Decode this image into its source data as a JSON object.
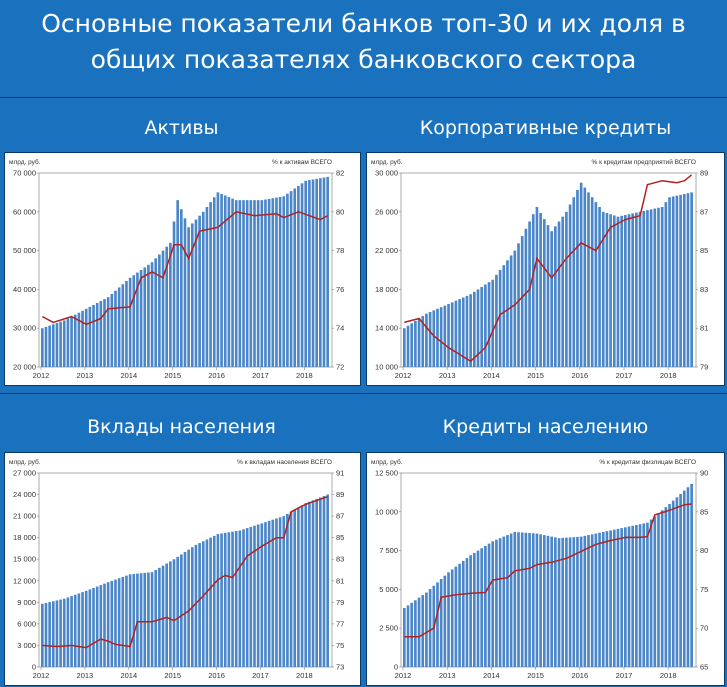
{
  "header": {
    "line1": "Основные показатели банков топ-30 и их доля в",
    "line2": "общих показателях банковского сектора"
  },
  "panel_titles": [
    "Активы",
    "Корпоративные кредиты",
    "Вклады населения",
    "Кредиты населению"
  ],
  "colors": {
    "bars": "#4a86c8",
    "line": "#b22222",
    "background": "#1a72bf"
  },
  "chart_data": [
    {
      "type": "bar",
      "title": "Активы",
      "left_unit": "млрд. руб.",
      "right_unit": "% к активам ВСЕГО",
      "x_labels": [
        "2012",
        "2013",
        "2014",
        "2015",
        "2016",
        "2017",
        "2018"
      ],
      "ylim": [
        20000,
        70000
      ],
      "yticks": [
        "20 000",
        "30 000",
        "40 000",
        "50 000",
        "60 000",
        "70 000"
      ],
      "y2lim": [
        72,
        82
      ],
      "y2ticks": [
        "72",
        "74",
        "76",
        "78",
        "80",
        "82"
      ],
      "series": [
        {
          "kind": "bar",
          "anchors": [
            [
              0,
              30000
            ],
            [
              6,
              32000
            ],
            [
              12,
              35000
            ],
            [
              18,
              38000
            ],
            [
              24,
              43000
            ],
            [
              30,
              47000
            ],
            [
              35,
              52000
            ],
            [
              37,
              63000
            ],
            [
              40,
              56000
            ],
            [
              44,
              60000
            ],
            [
              48,
              65000
            ],
            [
              53,
              63000
            ],
            [
              60,
              63000
            ],
            [
              66,
              64000
            ],
            [
              72,
              68000
            ],
            [
              78,
              69000
            ]
          ]
        },
        {
          "kind": "line",
          "anchors": [
            [
              0,
              74.6
            ],
            [
              3,
              74.3
            ],
            [
              8,
              74.6
            ],
            [
              12,
              74.2
            ],
            [
              16,
              74.5
            ],
            [
              18,
              75.0
            ],
            [
              24,
              75.1
            ],
            [
              27,
              76.6
            ],
            [
              30,
              76.9
            ],
            [
              33,
              76.6
            ],
            [
              36,
              78.3
            ],
            [
              38,
              78.3
            ],
            [
              40,
              77.6
            ],
            [
              43,
              79.0
            ],
            [
              48,
              79.2
            ],
            [
              53,
              80.0
            ],
            [
              58,
              79.8
            ],
            [
              64,
              79.9
            ],
            [
              66,
              79.7
            ],
            [
              70,
              80.0
            ],
            [
              76,
              79.6
            ],
            [
              78,
              79.8
            ]
          ]
        }
      ]
    },
    {
      "type": "bar",
      "title": "Корпоративные кредиты",
      "left_unit": "млрд. руб.",
      "right_unit": "% к кредитам предприятий ВСЕГО",
      "x_labels": [
        "2012",
        "2013",
        "2014",
        "2015",
        "2016",
        "2017",
        "2018"
      ],
      "ylim": [
        10000,
        30000
      ],
      "yticks": [
        "10 000",
        "14 000",
        "18 000",
        "22 000",
        "26 000",
        "30 000"
      ],
      "y2lim": [
        79,
        89
      ],
      "y2ticks": [
        "79",
        "81",
        "83",
        "85",
        "87",
        "89"
      ],
      "series": [
        {
          "kind": "bar",
          "anchors": [
            [
              0,
              14000
            ],
            [
              6,
              15500
            ],
            [
              12,
              16500
            ],
            [
              18,
              17500
            ],
            [
              24,
              19000
            ],
            [
              30,
              22000
            ],
            [
              36,
              26500
            ],
            [
              40,
              24000
            ],
            [
              44,
              26000
            ],
            [
              48,
              29000
            ],
            [
              54,
              26000
            ],
            [
              58,
              25500
            ],
            [
              64,
              26000
            ],
            [
              70,
              26500
            ],
            [
              72,
              27500
            ],
            [
              78,
              28000
            ]
          ]
        },
        {
          "kind": "line",
          "anchors": [
            [
              0,
              81.3
            ],
            [
              4,
              81.5
            ],
            [
              8,
              80.6
            ],
            [
              12,
              80.0
            ],
            [
              18,
              79.3
            ],
            [
              22,
              80.0
            ],
            [
              26,
              81.7
            ],
            [
              30,
              82.2
            ],
            [
              34,
              83.0
            ],
            [
              36,
              84.6
            ],
            [
              40,
              83.6
            ],
            [
              44,
              84.6
            ],
            [
              48,
              85.4
            ],
            [
              52,
              85.0
            ],
            [
              56,
              86.2
            ],
            [
              60,
              86.6
            ],
            [
              64,
              86.8
            ],
            [
              66,
              88.4
            ],
            [
              70,
              88.6
            ],
            [
              74,
              88.5
            ],
            [
              76,
              88.6
            ],
            [
              78,
              88.9
            ]
          ]
        }
      ]
    },
    {
      "type": "bar",
      "title": "Вклады населения",
      "left_unit": "млрд. руб.",
      "right_unit": "% к вкладам населения ВСЕГО",
      "x_labels": [
        "2012",
        "2013",
        "2014",
        "2015",
        "2016",
        "2017",
        "2018"
      ],
      "ylim": [
        0,
        27000
      ],
      "yticks": [
        "0",
        "3 000",
        "6 000",
        "9 000",
        "12 000",
        "15 000",
        "18 000",
        "21 000",
        "24 000",
        "27 000"
      ],
      "y2lim": [
        73,
        91
      ],
      "y2ticks": [
        "73",
        "75",
        "77",
        "79",
        "81",
        "83",
        "85",
        "87",
        "89",
        "91"
      ],
      "series": [
        {
          "kind": "bar",
          "anchors": [
            [
              0,
              8800
            ],
            [
              6,
              9500
            ],
            [
              12,
              10600
            ],
            [
              18,
              11800
            ],
            [
              24,
              12900
            ],
            [
              30,
              13200
            ],
            [
              36,
              15000
            ],
            [
              42,
              17000
            ],
            [
              48,
              18500
            ],
            [
              54,
              19000
            ],
            [
              60,
              20000
            ],
            [
              66,
              21000
            ],
            [
              72,
              22800
            ],
            [
              78,
              24000
            ]
          ]
        },
        {
          "kind": "line",
          "anchors": [
            [
              0,
              75.0
            ],
            [
              4,
              74.9
            ],
            [
              8,
              75.0
            ],
            [
              12,
              74.8
            ],
            [
              16,
              75.6
            ],
            [
              18,
              75.4
            ],
            [
              20,
              75.1
            ],
            [
              22,
              75.0
            ],
            [
              24,
              74.9
            ],
            [
              26,
              77.2
            ],
            [
              30,
              77.2
            ],
            [
              34,
              77.6
            ],
            [
              36,
              77.3
            ],
            [
              40,
              78.2
            ],
            [
              44,
              79.6
            ],
            [
              48,
              81.1
            ],
            [
              50,
              81.5
            ],
            [
              52,
              81.3
            ],
            [
              56,
              83.3
            ],
            [
              60,
              84.2
            ],
            [
              64,
              85.0
            ],
            [
              66,
              85.0
            ],
            [
              68,
              87.4
            ],
            [
              72,
              88.1
            ],
            [
              78,
              88.8
            ]
          ]
        }
      ]
    },
    {
      "type": "bar",
      "title": "Кредиты населению",
      "left_unit": "млрд. руб.",
      "right_unit": "% к кредитам физлицам ВСЕГО",
      "x_labels": [
        "2012",
        "2013",
        "2014",
        "2015",
        "2016",
        "2017",
        "2018"
      ],
      "ylim": [
        0,
        12500
      ],
      "yticks": [
        "0",
        "2 500",
        "5 000",
        "7 500",
        "10 000",
        "12 500"
      ],
      "y2lim": [
        65,
        90
      ],
      "y2ticks": [
        "65",
        "70",
        "75",
        "80",
        "85",
        "90"
      ],
      "series": [
        {
          "kind": "bar",
          "anchors": [
            [
              0,
              3800
            ],
            [
              6,
              4800
            ],
            [
              12,
              6100
            ],
            [
              18,
              7200
            ],
            [
              24,
              8100
            ],
            [
              30,
              8700
            ],
            [
              36,
              8600
            ],
            [
              42,
              8300
            ],
            [
              48,
              8400
            ],
            [
              54,
              8700
            ],
            [
              60,
              9000
            ],
            [
              66,
              9300
            ],
            [
              72,
              10500
            ],
            [
              78,
              11800
            ]
          ]
        },
        {
          "kind": "line",
          "anchors": [
            [
              0,
              68.9
            ],
            [
              4,
              68.9
            ],
            [
              8,
              70.0
            ],
            [
              10,
              74.0
            ],
            [
              14,
              74.3
            ],
            [
              18,
              74.5
            ],
            [
              22,
              74.6
            ],
            [
              24,
              76.2
            ],
            [
              28,
              76.5
            ],
            [
              30,
              77.4
            ],
            [
              34,
              77.7
            ],
            [
              36,
              78.2
            ],
            [
              40,
              78.5
            ],
            [
              44,
              79.0
            ],
            [
              48,
              79.9
            ],
            [
              52,
              80.8
            ],
            [
              56,
              81.3
            ],
            [
              60,
              81.7
            ],
            [
              64,
              81.7
            ],
            [
              66,
              81.8
            ],
            [
              68,
              84.6
            ],
            [
              72,
              85.2
            ],
            [
              76,
              85.9
            ],
            [
              78,
              86.0
            ]
          ]
        }
      ]
    }
  ]
}
